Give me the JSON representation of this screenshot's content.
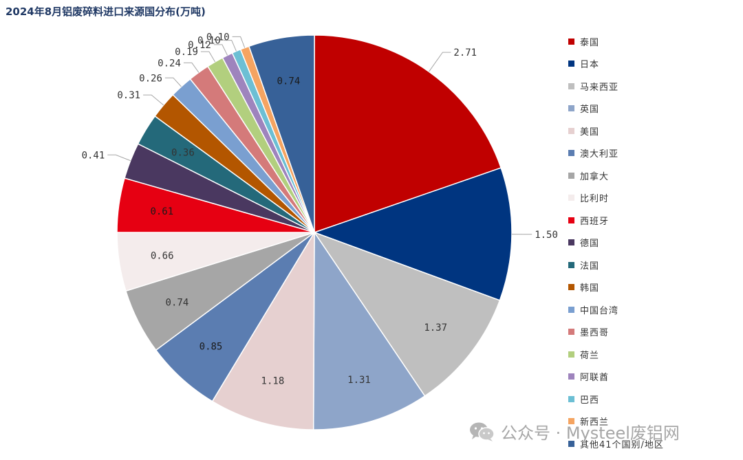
{
  "title": "2024年8月铝废碎料进口来源国分布(万吨)",
  "watermark": "公众号 · Mysteel废铝网",
  "chart_data": {
    "type": "pie",
    "title": "2024年8月铝废碎料进口来源国分布(万吨)",
    "legend_position": "right",
    "slices": [
      {
        "name": "泰国",
        "value": 2.71,
        "label": "2.71",
        "color": "#c00000"
      },
      {
        "name": "日本",
        "value": 1.5,
        "label": "1.50",
        "color": "#003580"
      },
      {
        "name": "马来西亚",
        "value": 1.37,
        "label": "1.37",
        "color": "#bfbfbf"
      },
      {
        "name": "英国",
        "value": 1.31,
        "label": "1.31",
        "color": "#8ea5c9"
      },
      {
        "name": "美国",
        "value": 1.18,
        "label": "1.18",
        "color": "#e6d0d0"
      },
      {
        "name": "澳大利亚",
        "value": 0.85,
        "label": "0.85",
        "color": "#5b7db1"
      },
      {
        "name": "加拿大",
        "value": 0.74,
        "label": "0.74",
        "color": "#a6a6a6"
      },
      {
        "name": "比利时",
        "value": 0.66,
        "label": "0.66",
        "color": "#f4ecec"
      },
      {
        "name": "西班牙",
        "value": 0.61,
        "label": "0.61",
        "color": "#e60012"
      },
      {
        "name": "德国",
        "value": 0.41,
        "label": "0.41",
        "color": "#4a3860"
      },
      {
        "name": "法国",
        "value": 0.36,
        "label": "0.36",
        "color": "#24697a"
      },
      {
        "name": "韩国",
        "value": 0.31,
        "label": "0.31",
        "color": "#b35600"
      },
      {
        "name": "中国台湾",
        "value": 0.26,
        "label": "0.26",
        "color": "#7a9fd0"
      },
      {
        "name": "墨西哥",
        "value": 0.24,
        "label": "0.24",
        "color": "#d47a7a"
      },
      {
        "name": "荷兰",
        "value": 0.19,
        "label": "0.19",
        "color": "#b2cf7e"
      },
      {
        "name": "阿联酋",
        "value": 0.12,
        "label": "0.12",
        "color": "#9e84bd"
      },
      {
        "name": "巴西",
        "value": 0.1,
        "label": "0.10",
        "color": "#6cbfd4"
      },
      {
        "name": "新西兰",
        "value": 0.1,
        "label": "0.10",
        "color": "#f5a461"
      },
      {
        "name": "其他41个国别/地区",
        "value": 0.74,
        "label": "0.74",
        "color": "#376198"
      }
    ]
  }
}
